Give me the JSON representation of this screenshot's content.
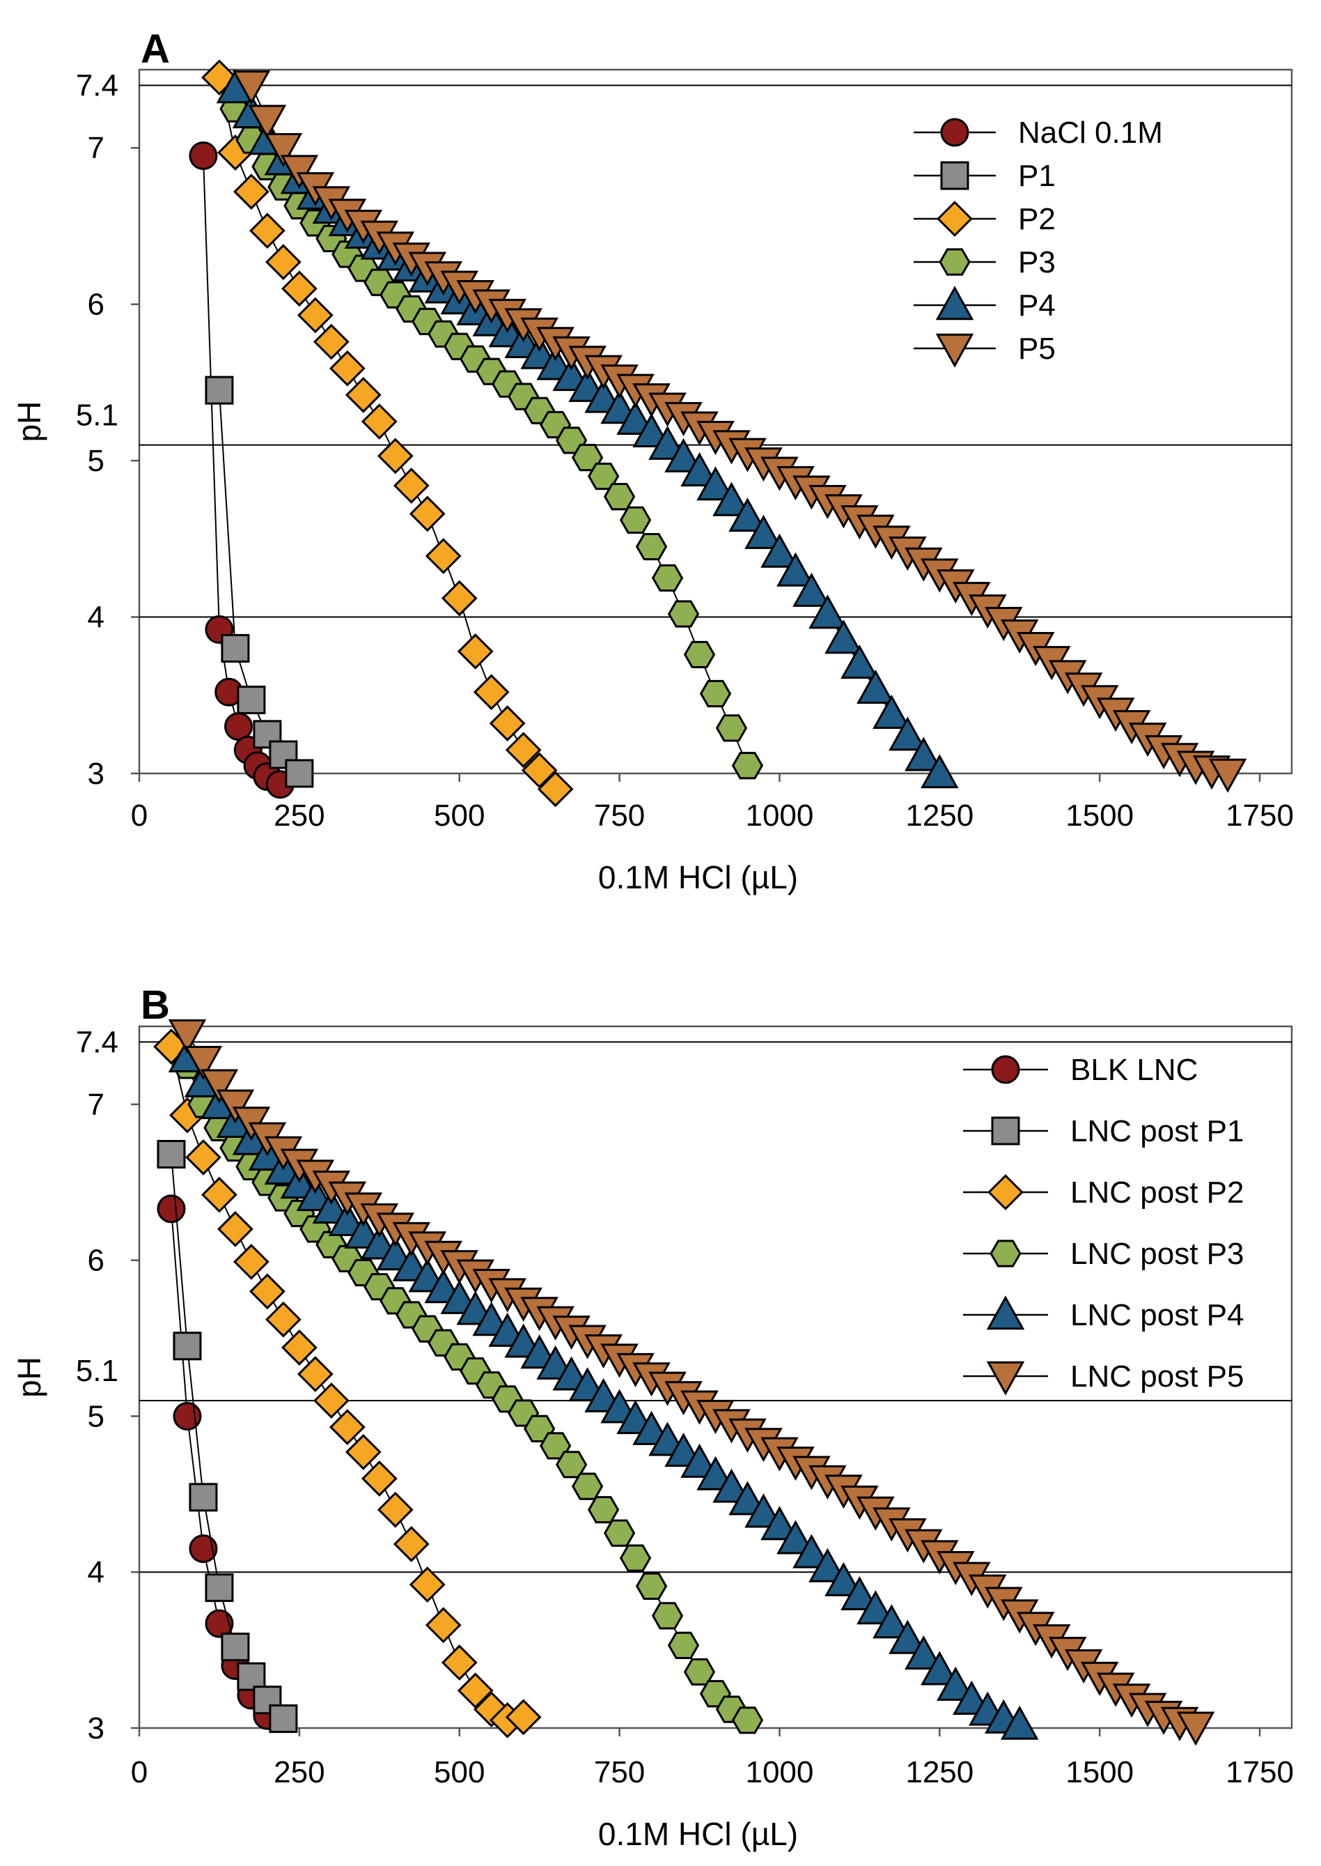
{
  "figure": {
    "panels": [
      "A",
      "B"
    ]
  },
  "chart_data": [
    {
      "type": "scatter",
      "panel_label": "A",
      "xlabel": "0.1M HCl (µL)",
      "ylabel": "pH",
      "xlim": [
        0,
        1800
      ],
      "ylim": [
        3,
        7.5
      ],
      "xticks": [
        0,
        250,
        500,
        750,
        1000,
        1250,
        1500,
        1750
      ],
      "yticks": [
        3,
        4,
        5,
        6,
        7
      ],
      "ytick_labels": [
        "3",
        "4",
        "5",
        "6",
        "7"
      ],
      "extra_ytick_labels": [
        {
          "value": 5.1,
          "label": "5.1"
        },
        {
          "value": 7.4,
          "label": "7.4"
        }
      ],
      "reference_lines": [
        7.4,
        5.1,
        4.0
      ],
      "legend_position": "top-right",
      "series": [
        {
          "name": "NaCl 0.1M",
          "marker": "circle",
          "color": "#8b1a1a",
          "x": [
            100,
            125,
            140,
            155,
            170,
            185,
            200,
            220
          ],
          "y": [
            6.95,
            3.92,
            3.52,
            3.3,
            3.15,
            3.05,
            2.98,
            2.93
          ]
        },
        {
          "name": "P1",
          "marker": "square",
          "color": "#8c8c8c",
          "x": [
            125,
            150,
            175,
            200,
            225,
            250
          ],
          "y": [
            5.45,
            3.8,
            3.47,
            3.25,
            3.12,
            3.0
          ]
        },
        {
          "name": "P2",
          "marker": "diamond",
          "color": "#f5a623",
          "x": [
            125,
            150,
            175,
            200,
            225,
            250,
            275,
            300,
            325,
            350,
            375,
            400,
            425,
            450,
            475,
            500,
            525,
            550,
            575,
            600,
            625,
            650
          ],
          "y": [
            7.45,
            6.97,
            6.72,
            6.47,
            6.27,
            6.1,
            5.93,
            5.76,
            5.59,
            5.42,
            5.25,
            5.03,
            4.84,
            4.66,
            4.39,
            4.12,
            3.78,
            3.52,
            3.32,
            3.15,
            3.02,
            2.9
          ]
        },
        {
          "name": "P3",
          "marker": "hexagon",
          "color": "#8fb050",
          "x": [
            150,
            175,
            200,
            225,
            250,
            275,
            300,
            325,
            350,
            375,
            400,
            425,
            450,
            475,
            500,
            525,
            550,
            575,
            600,
            625,
            650,
            675,
            700,
            725,
            750,
            775,
            800,
            825,
            850,
            875,
            900,
            925,
            950
          ],
          "y": [
            7.25,
            7.05,
            6.88,
            6.75,
            6.63,
            6.52,
            6.42,
            6.32,
            6.23,
            6.14,
            6.06,
            5.97,
            5.89,
            5.81,
            5.73,
            5.65,
            5.57,
            5.49,
            5.41,
            5.32,
            5.23,
            5.13,
            5.02,
            4.9,
            4.77,
            4.62,
            4.45,
            4.25,
            4.02,
            3.76,
            3.51,
            3.29,
            3.05
          ]
        },
        {
          "name": "P4",
          "marker": "triangle-up",
          "color": "#1f5b85",
          "x": [
            150,
            175,
            200,
            225,
            250,
            275,
            300,
            325,
            350,
            375,
            400,
            425,
            450,
            475,
            500,
            525,
            550,
            575,
            600,
            625,
            650,
            675,
            700,
            725,
            750,
            775,
            800,
            825,
            850,
            875,
            900,
            925,
            950,
            975,
            1000,
            1025,
            1050,
            1075,
            1100,
            1125,
            1150,
            1175,
            1200,
            1225,
            1250
          ],
          "y": [
            7.38,
            7.22,
            7.05,
            6.92,
            6.8,
            6.7,
            6.61,
            6.53,
            6.45,
            6.38,
            6.31,
            6.24,
            6.17,
            6.1,
            6.03,
            5.96,
            5.89,
            5.82,
            5.75,
            5.68,
            5.61,
            5.54,
            5.47,
            5.4,
            5.33,
            5.26,
            5.18,
            5.1,
            5.02,
            4.93,
            4.84,
            4.74,
            4.64,
            4.53,
            4.41,
            4.29,
            4.16,
            4.02,
            3.86,
            3.7,
            3.54,
            3.38,
            3.24,
            3.11,
            3.0
          ]
        },
        {
          "name": "P5",
          "marker": "triangle-down",
          "color": "#b8713a",
          "x": [
            175,
            200,
            225,
            250,
            275,
            300,
            325,
            350,
            375,
            400,
            425,
            450,
            475,
            500,
            525,
            550,
            575,
            600,
            625,
            650,
            675,
            700,
            725,
            750,
            775,
            800,
            825,
            850,
            875,
            900,
            925,
            950,
            975,
            1000,
            1025,
            1050,
            1075,
            1100,
            1125,
            1150,
            1175,
            1200,
            1225,
            1250,
            1275,
            1300,
            1325,
            1350,
            1375,
            1400,
            1425,
            1450,
            1475,
            1500,
            1525,
            1550,
            1575,
            1600,
            1625,
            1650,
            1675,
            1700
          ],
          "y": [
            7.4,
            7.18,
            7.0,
            6.86,
            6.75,
            6.66,
            6.58,
            6.51,
            6.44,
            6.37,
            6.3,
            6.24,
            6.18,
            6.12,
            6.06,
            6.0,
            5.94,
            5.88,
            5.82,
            5.76,
            5.7,
            5.64,
            5.58,
            5.52,
            5.46,
            5.4,
            5.34,
            5.28,
            5.22,
            5.16,
            5.1,
            5.05,
            4.99,
            4.93,
            4.87,
            4.81,
            4.75,
            4.69,
            4.62,
            4.56,
            4.49,
            4.42,
            4.35,
            4.28,
            4.21,
            4.13,
            4.05,
            3.97,
            3.89,
            3.81,
            3.72,
            3.63,
            3.55,
            3.47,
            3.39,
            3.31,
            3.23,
            3.15,
            3.1,
            3.05,
            3.02,
            3.0
          ]
        }
      ]
    },
    {
      "type": "scatter",
      "panel_label": "B",
      "xlabel": "0.1M HCl (µL)",
      "ylabel": "pH",
      "xlim": [
        0,
        1800
      ],
      "ylim": [
        3,
        7.5
      ],
      "xticks": [
        0,
        250,
        500,
        750,
        1000,
        1250,
        1500,
        1750
      ],
      "yticks": [
        3,
        4,
        5,
        6,
        7
      ],
      "ytick_labels": [
        "3",
        "4",
        "5",
        "6",
        "7"
      ],
      "extra_ytick_labels": [
        {
          "value": 5.1,
          "label": "5.1"
        },
        {
          "value": 7.4,
          "label": "7.4"
        }
      ],
      "reference_lines": [
        7.4,
        5.1,
        4.0
      ],
      "legend_position": "top-right",
      "series": [
        {
          "name": "BLK LNC",
          "marker": "circle",
          "color": "#8b1a1a",
          "x": [
            50,
            75,
            100,
            125,
            150,
            175,
            200
          ],
          "y": [
            6.33,
            5.0,
            4.15,
            3.67,
            3.4,
            3.21,
            3.08
          ]
        },
        {
          "name": "LNC post P1",
          "marker": "square",
          "color": "#8c8c8c",
          "x": [
            50,
            75,
            100,
            125,
            150,
            175,
            200,
            225
          ],
          "y": [
            6.68,
            5.45,
            4.48,
            3.9,
            3.52,
            3.33,
            3.18,
            3.06
          ]
        },
        {
          "name": "LNC post P2",
          "marker": "diamond",
          "color": "#f5a623",
          "x": [
            50,
            75,
            100,
            125,
            150,
            175,
            200,
            225,
            250,
            275,
            300,
            325,
            350,
            375,
            400,
            425,
            450,
            475,
            500,
            525,
            550,
            575,
            600
          ],
          "y": [
            7.37,
            6.93,
            6.66,
            6.42,
            6.2,
            5.99,
            5.8,
            5.62,
            5.44,
            5.27,
            5.1,
            4.93,
            4.77,
            4.6,
            4.4,
            4.18,
            3.92,
            3.66,
            3.42,
            3.24,
            3.12,
            3.05,
            3.07
          ]
        },
        {
          "name": "LNC post P3",
          "marker": "hexagon",
          "color": "#8fb050",
          "x": [
            75,
            100,
            125,
            150,
            175,
            200,
            225,
            250,
            275,
            300,
            325,
            350,
            375,
            400,
            425,
            450,
            475,
            500,
            525,
            550,
            575,
            600,
            625,
            650,
            675,
            700,
            725,
            750,
            775,
            800,
            825,
            850,
            875,
            900,
            925,
            950
          ],
          "y": [
            7.25,
            7.0,
            6.85,
            6.72,
            6.6,
            6.5,
            6.4,
            6.3,
            6.2,
            6.1,
            6.01,
            5.92,
            5.83,
            5.74,
            5.65,
            5.56,
            5.47,
            5.38,
            5.29,
            5.2,
            5.11,
            5.02,
            4.92,
            4.81,
            4.69,
            4.55,
            4.4,
            4.25,
            4.09,
            3.91,
            3.72,
            3.53,
            3.36,
            3.22,
            3.12,
            3.05
          ]
        },
        {
          "name": "LNC post P4",
          "marker": "triangle-up",
          "color": "#1f5b85",
          "x": [
            75,
            100,
            125,
            150,
            175,
            200,
            225,
            250,
            275,
            300,
            325,
            350,
            375,
            400,
            425,
            450,
            475,
            500,
            525,
            550,
            575,
            600,
            625,
            650,
            675,
            700,
            725,
            750,
            775,
            800,
            825,
            850,
            875,
            900,
            925,
            950,
            975,
            1000,
            1025,
            1050,
            1075,
            1100,
            1125,
            1150,
            1175,
            1200,
            1225,
            1250,
            1275,
            1300,
            1325,
            1350,
            1375
          ],
          "y": [
            7.3,
            7.14,
            7.0,
            6.88,
            6.77,
            6.67,
            6.58,
            6.49,
            6.41,
            6.33,
            6.25,
            6.17,
            6.1,
            6.03,
            5.96,
            5.89,
            5.82,
            5.75,
            5.68,
            5.61,
            5.54,
            5.47,
            5.4,
            5.33,
            5.26,
            5.19,
            5.12,
            5.05,
            4.98,
            4.91,
            4.84,
            4.77,
            4.7,
            4.62,
            4.54,
            4.46,
            4.38,
            4.3,
            4.21,
            4.12,
            4.03,
            3.94,
            3.85,
            3.76,
            3.67,
            3.57,
            3.47,
            3.37,
            3.27,
            3.18,
            3.11,
            3.06,
            3.02
          ]
        },
        {
          "name": "LNC post P5",
          "marker": "triangle-down",
          "color": "#b8713a",
          "x": [
            75,
            100,
            125,
            150,
            175,
            200,
            225,
            250,
            275,
            300,
            325,
            350,
            375,
            400,
            425,
            450,
            475,
            500,
            525,
            550,
            575,
            600,
            625,
            650,
            675,
            700,
            725,
            750,
            775,
            800,
            825,
            850,
            875,
            900,
            925,
            950,
            975,
            1000,
            1025,
            1050,
            1075,
            1100,
            1125,
            1150,
            1175,
            1200,
            1225,
            1250,
            1275,
            1300,
            1325,
            1350,
            1375,
            1400,
            1425,
            1450,
            1475,
            1500,
            1525,
            1550,
            1575,
            1600,
            1625,
            1650
          ],
          "y": [
            7.45,
            7.28,
            7.13,
            7.0,
            6.89,
            6.79,
            6.7,
            6.62,
            6.55,
            6.48,
            6.41,
            6.34,
            6.27,
            6.21,
            6.15,
            6.09,
            6.03,
            5.97,
            5.91,
            5.85,
            5.79,
            5.73,
            5.67,
            5.61,
            5.55,
            5.49,
            5.43,
            5.37,
            5.31,
            5.25,
            5.19,
            5.13,
            5.07,
            5.01,
            4.95,
            4.89,
            4.83,
            4.77,
            4.71,
            4.65,
            4.59,
            4.53,
            4.46,
            4.39,
            4.32,
            4.25,
            4.18,
            4.11,
            4.04,
            3.97,
            3.89,
            3.81,
            3.73,
            3.65,
            3.57,
            3.49,
            3.41,
            3.33,
            3.26,
            3.19,
            3.13,
            3.08,
            3.04,
            3.01
          ]
        }
      ]
    }
  ]
}
